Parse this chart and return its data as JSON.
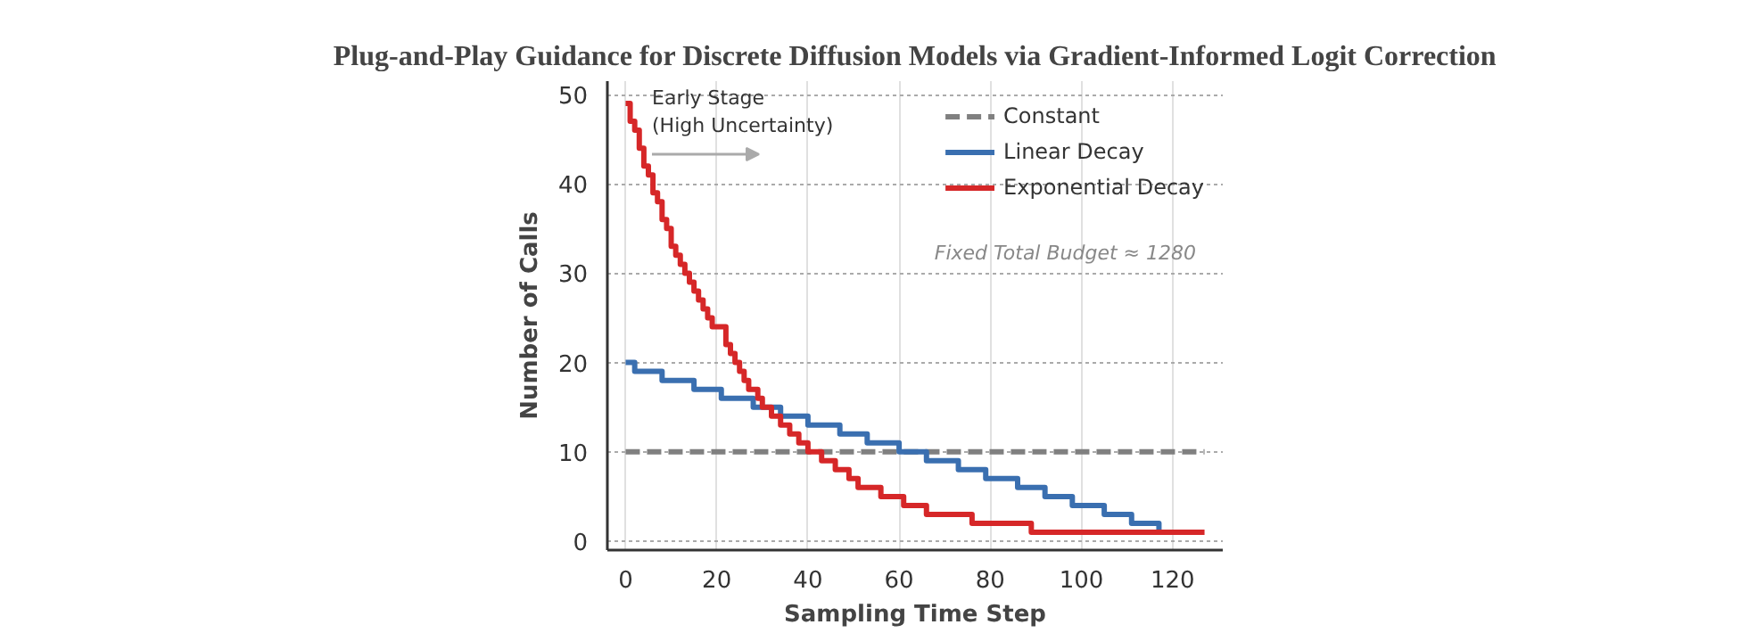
{
  "chart_data": {
    "type": "step",
    "title": "Plug-and-Play Guidance for Discrete Diffusion Models via Gradient-Informed Logit Correction",
    "xlabel": "Sampling Time Step",
    "ylabel": "Number of Calls",
    "xlim": [
      -4,
      131
    ],
    "ylim": [
      -1,
      51.5
    ],
    "xticks": [
      0,
      20,
      40,
      60,
      80,
      100,
      120
    ],
    "yticks": [
      0,
      10,
      20,
      30,
      40,
      50
    ],
    "grid": true,
    "legend": "top right",
    "annotations": [
      "Early Stage\n(High Uncertainty)",
      "Fixed Total Budget ≈ 1280"
    ],
    "series": [
      {
        "name": "Constant",
        "type": "line",
        "line_style": "dashed",
        "color": "#808080",
        "x": [
          0,
          127
        ],
        "values": [
          10,
          10
        ]
      },
      {
        "name": "Linear Decay",
        "color": "#3a6fb0",
        "x": [
          0,
          2,
          8,
          15,
          21,
          28,
          34,
          40,
          47,
          53,
          60,
          66,
          73,
          79,
          86,
          92,
          98,
          105,
          111,
          117
        ],
        "values": [
          20,
          19,
          18,
          17,
          16,
          15,
          14,
          13,
          12,
          11,
          10,
          9,
          8,
          7,
          6,
          5,
          4,
          3,
          2,
          1
        ]
      },
      {
        "name": "Exponential Decay",
        "color": "#d62728",
        "x": [
          0,
          1,
          2,
          3,
          4,
          5,
          6,
          7,
          8,
          9,
          10,
          11,
          12,
          13,
          14,
          15,
          16,
          17,
          18,
          19,
          20,
          22,
          23,
          24,
          25,
          26,
          27,
          29,
          30,
          32,
          34,
          36,
          38,
          40,
          43,
          46,
          49,
          51,
          56,
          61,
          66,
          76,
          89,
          127
        ],
        "values": [
          49,
          47,
          46,
          44,
          42,
          41,
          39,
          38,
          36,
          35,
          33,
          32,
          31,
          30,
          29,
          28,
          27,
          26,
          25,
          24,
          24,
          22,
          21,
          20,
          19,
          18,
          17,
          16,
          15,
          14,
          13,
          12,
          11,
          10,
          9,
          8,
          7,
          6,
          5,
          4,
          3,
          2,
          1,
          1
        ]
      }
    ]
  }
}
